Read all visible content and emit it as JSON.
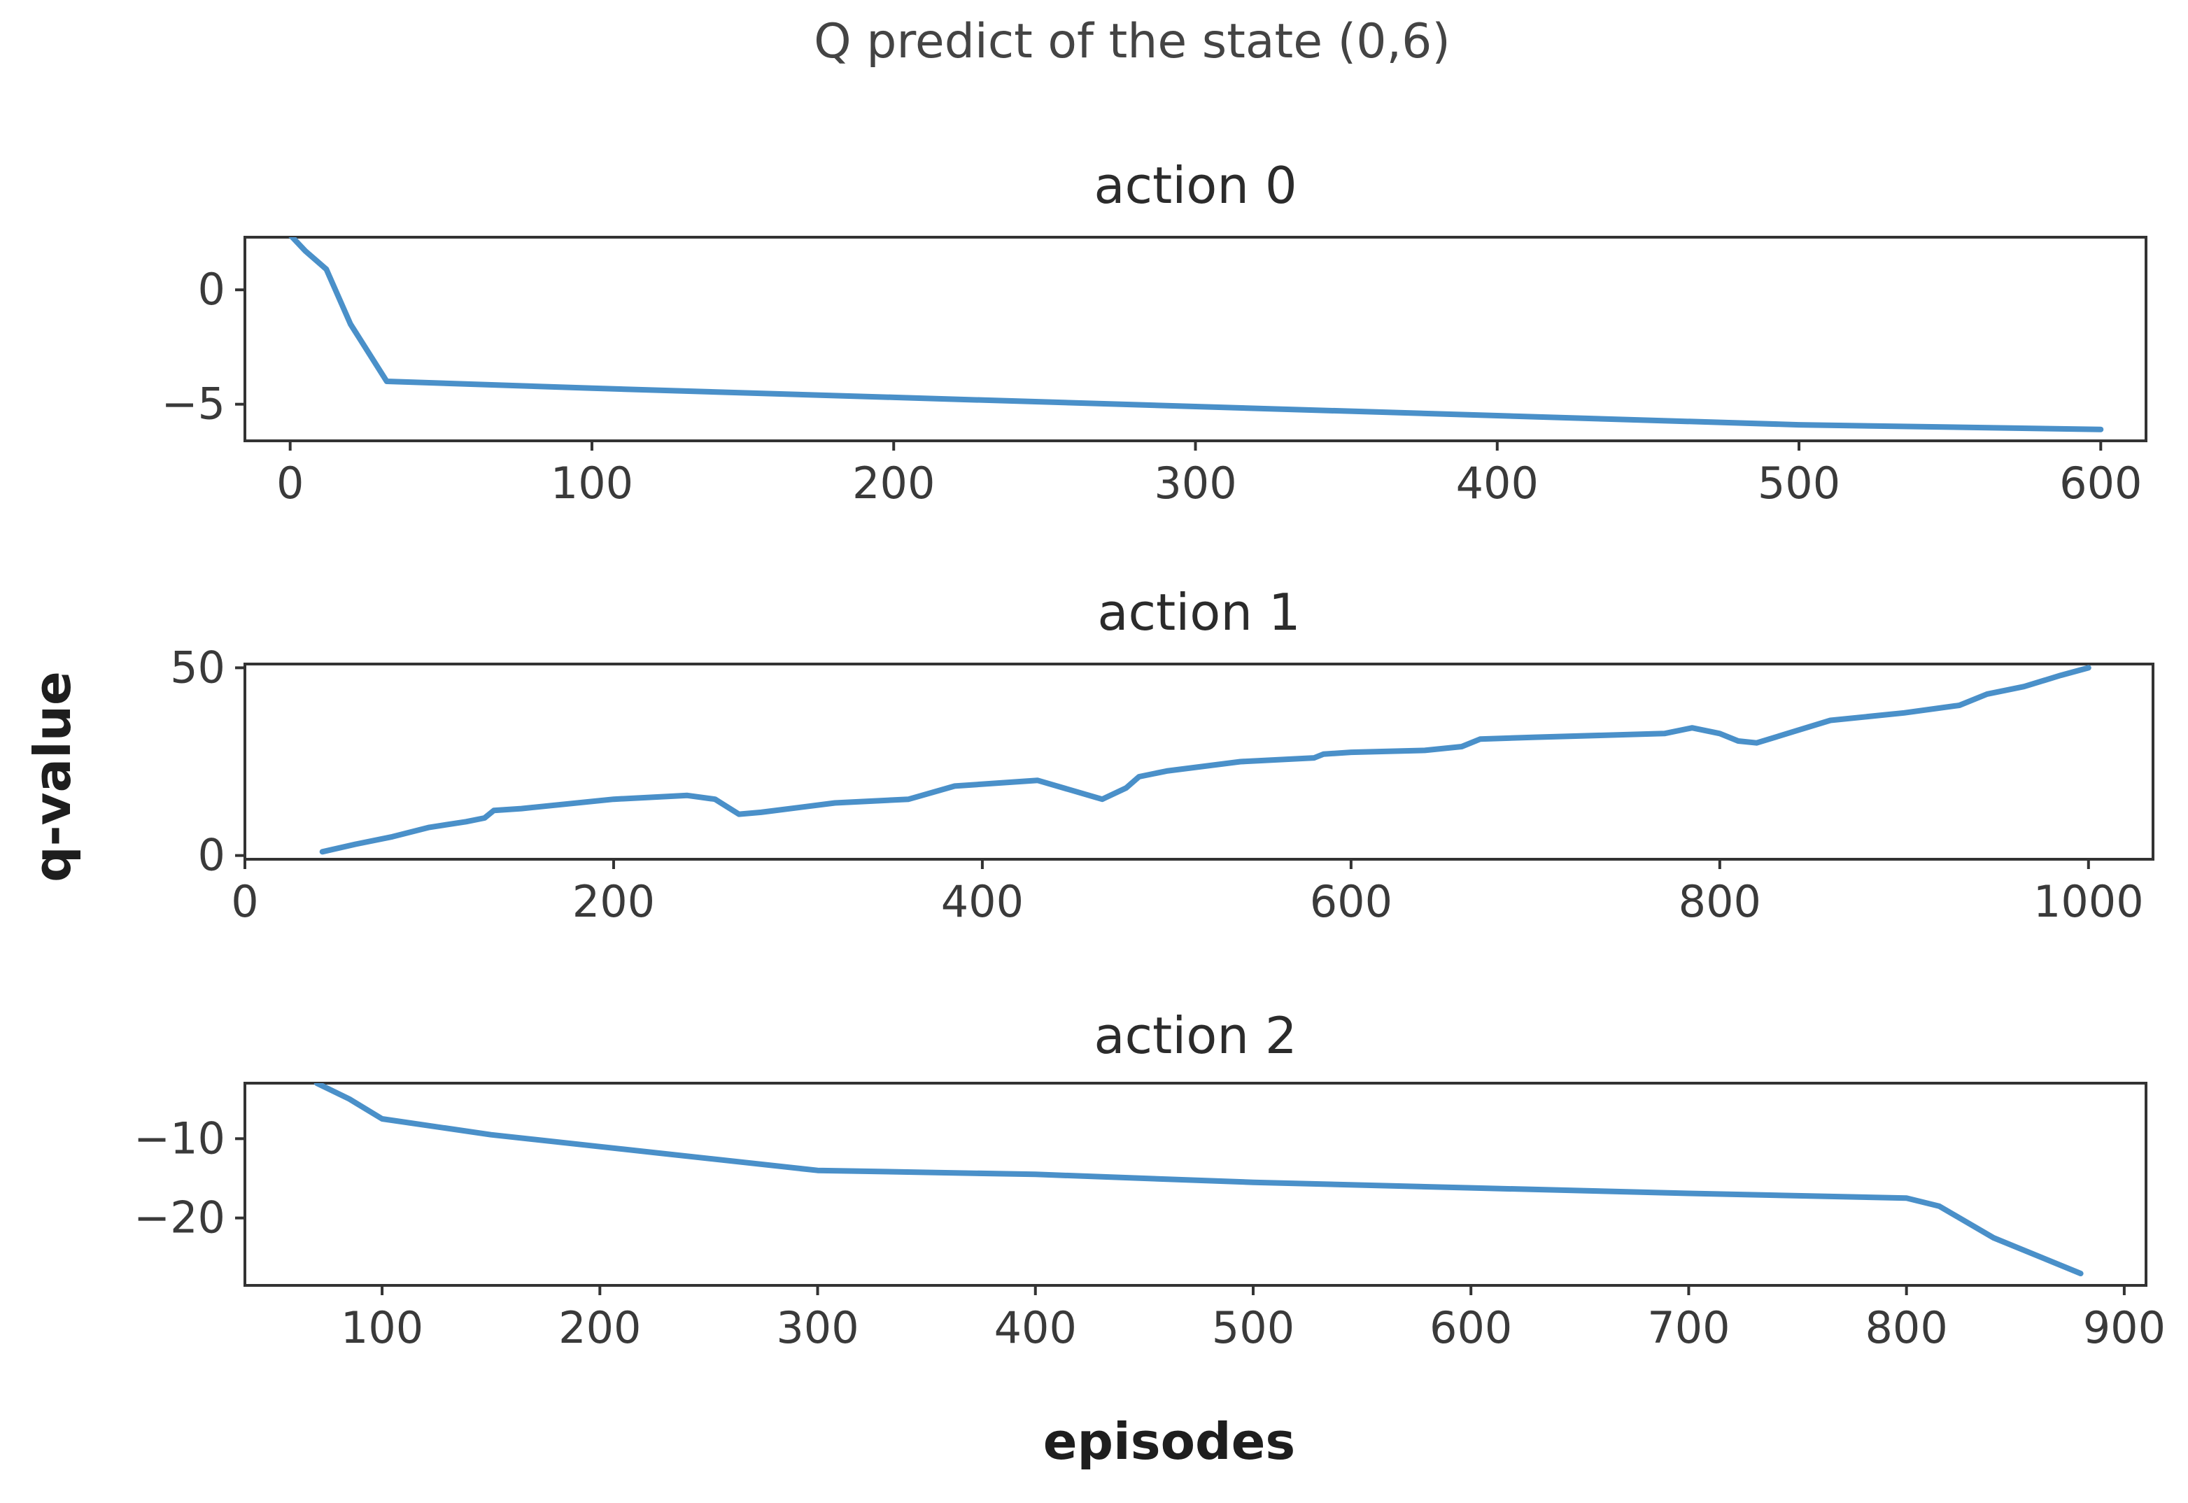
{
  "figure": {
    "suptitle": "Q predict of the state (0,6)",
    "xlabel": "episodes",
    "ylabel": "q-value",
    "line_color": "#4a90c9"
  },
  "chart_data": [
    {
      "type": "line",
      "title": "action 0",
      "xlim": [
        -15,
        615
      ],
      "ylim": [
        -6.6,
        2.3
      ],
      "xticks": [
        0,
        100,
        200,
        300,
        400,
        500,
        600
      ],
      "xtick_labels": [
        "0",
        "100",
        "200",
        "300",
        "400",
        "500",
        "600"
      ],
      "yticks": [
        0,
        -5
      ],
      "ytick_labels": [
        "0",
        "−5"
      ],
      "grid": false,
      "series": [
        {
          "x": [
            0,
            5,
            12,
            20,
            32,
            100,
            200,
            300,
            400,
            500,
            600
          ],
          "y": [
            2.4,
            1.7,
            0.9,
            -1.5,
            -4.0,
            -4.3,
            -4.7,
            -5.1,
            -5.5,
            -5.9,
            -6.1
          ]
        }
      ]
    },
    {
      "type": "line",
      "title": "action 1",
      "xlim": [
        0,
        1035
      ],
      "ylim": [
        -1,
        51
      ],
      "xticks": [
        0,
        200,
        400,
        600,
        800,
        1000
      ],
      "xtick_labels": [
        "0",
        "200",
        "400",
        "600",
        "800",
        "1000"
      ],
      "yticks": [
        50,
        0
      ],
      "ytick_labels": [
        "50",
        "0"
      ],
      "grid": false,
      "series": [
        {
          "x": [
            42,
            60,
            80,
            100,
            120,
            130,
            135,
            150,
            200,
            240,
            255,
            268,
            280,
            320,
            360,
            385,
            430,
            465,
            478,
            485,
            500,
            540,
            580,
            585,
            600,
            640,
            660,
            670,
            700,
            770,
            785,
            800,
            810,
            820,
            840,
            860,
            900,
            930,
            945,
            965,
            985,
            1000
          ],
          "y": [
            1,
            3,
            5,
            7.5,
            9,
            10,
            12,
            12.5,
            15,
            16,
            15,
            11,
            11.5,
            14,
            15,
            18.5,
            20,
            15,
            18,
            21,
            22.5,
            25,
            26,
            27,
            27.5,
            28,
            29,
            31,
            31.5,
            32.5,
            34,
            32.5,
            30.5,
            30,
            33,
            36,
            38,
            40,
            43,
            45,
            48,
            50
          ]
        }
      ]
    },
    {
      "type": "line",
      "title": "action 2",
      "xlim": [
        37,
        910
      ],
      "ylim": [
        -28.5,
        -3
      ],
      "xticks": [
        100,
        200,
        300,
        400,
        500,
        600,
        700,
        800,
        900
      ],
      "xtick_labels": [
        "100",
        "200",
        "300",
        "400",
        "500",
        "600",
        "700",
        "800",
        "900"
      ],
      "yticks": [
        -10,
        -20
      ],
      "ytick_labels": [
        "−10",
        "−20"
      ],
      "grid": false,
      "series": [
        {
          "x": [
            70,
            85,
            100,
            150,
            200,
            250,
            300,
            400,
            500,
            600,
            700,
            800,
            815,
            840,
            880
          ],
          "y": [
            -3,
            -5,
            -7.5,
            -9.5,
            -11,
            -12.5,
            -14,
            -14.5,
            -15.5,
            -16.2,
            -16.9,
            -17.5,
            -18.5,
            -22.5,
            -27
          ]
        }
      ]
    }
  ]
}
